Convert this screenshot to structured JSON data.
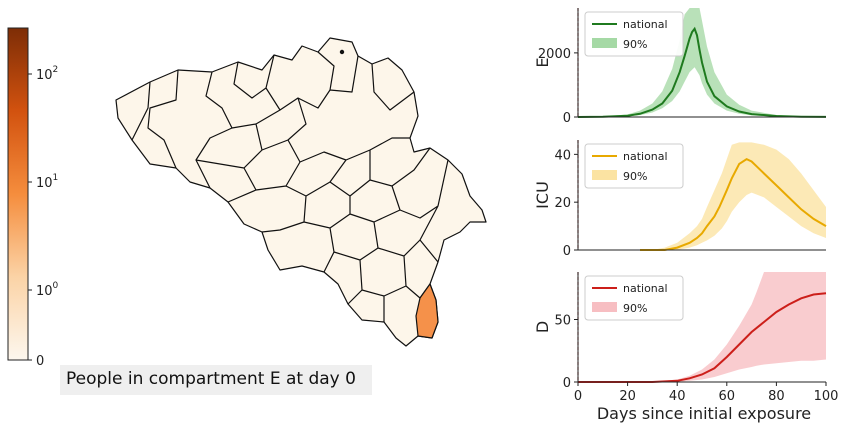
{
  "caption": "People in compartment E at day 0",
  "colorbar": {
    "tick_labels": [
      "0",
      "10",
      "10",
      "10"
    ],
    "tick_exponents": [
      "",
      "0",
      "1",
      "2"
    ],
    "scale": "symlog",
    "colors": [
      "#fdf7ee",
      "#fbd3a6",
      "#f58d3d",
      "#d2520f",
      "#7d2d06"
    ]
  },
  "map": {
    "base_fill": "#fdf6ea",
    "highlight_fill": "#f5914a",
    "border_color": "#111111"
  },
  "chart_data": [
    {
      "type": "area",
      "ylabel": "E",
      "xlim": [
        0,
        100
      ],
      "ylim": [
        0,
        3400
      ],
      "yticks": [
        0,
        2000
      ],
      "ytick_labels": [
        "0",
        "2000"
      ],
      "color": "#1f7a1f",
      "band_color": "#7fc97f",
      "legend": [
        "national",
        "90%"
      ],
      "series": [
        {
          "name": "national",
          "x": [
            0,
            10,
            20,
            25,
            30,
            34,
            38,
            41,
            43,
            45,
            46,
            47,
            48,
            49,
            50,
            52,
            55,
            60,
            65,
            70,
            80,
            90,
            100
          ],
          "y": [
            0,
            5,
            40,
            100,
            230,
            420,
            820,
            1400,
            1900,
            2450,
            2650,
            2750,
            2550,
            2100,
            1700,
            1100,
            650,
            330,
            170,
            90,
            30,
            10,
            3
          ]
        },
        {
          "name": "90%",
          "x": [
            0,
            10,
            20,
            25,
            30,
            34,
            38,
            41,
            43,
            45,
            47,
            49,
            50,
            52,
            55,
            60,
            65,
            70,
            80,
            90,
            100
          ],
          "y_low": [
            0,
            2,
            20,
            60,
            140,
            270,
            500,
            800,
            1100,
            1400,
            1550,
            1300,
            1050,
            700,
            420,
            200,
            100,
            50,
            15,
            5,
            1
          ],
          "y_high": [
            0,
            12,
            80,
            200,
            420,
            800,
            1500,
            2400,
            3200,
            3400,
            3400,
            3400,
            3000,
            2200,
            1400,
            700,
            380,
            200,
            60,
            20,
            6
          ]
        }
      ]
    },
    {
      "type": "area",
      "ylabel": "ICU",
      "xlim": [
        0,
        100
      ],
      "ylim": [
        0,
        46
      ],
      "yticks": [
        0,
        20,
        40
      ],
      "ytick_labels": [
        "0",
        "20",
        "40"
      ],
      "color": "#e8a900",
      "band_color": "#f9d77a",
      "legend": [
        "national",
        "90%"
      ],
      "series": [
        {
          "name": "national",
          "x": [
            25,
            30,
            35,
            40,
            45,
            48,
            50,
            52,
            55,
            57,
            60,
            62,
            65,
            68,
            70,
            72,
            75,
            80,
            85,
            90,
            95,
            100
          ],
          "y": [
            0,
            0,
            0,
            1,
            3,
            5,
            7,
            10,
            14,
            18,
            25,
            30,
            36,
            38,
            37,
            35,
            32,
            27,
            22,
            17,
            13,
            10
          ]
        },
        {
          "name": "90%",
          "x": [
            25,
            30,
            35,
            40,
            45,
            48,
            50,
            52,
            55,
            58,
            60,
            62,
            65,
            68,
            70,
            75,
            80,
            85,
            90,
            95,
            100
          ],
          "y_low": [
            0,
            0,
            0,
            0,
            1,
            2,
            3,
            4,
            6,
            9,
            12,
            16,
            20,
            23,
            24,
            22,
            18,
            14,
            10,
            7,
            5
          ],
          "y_high": [
            0,
            0,
            1,
            3,
            7,
            10,
            13,
            18,
            25,
            32,
            38,
            44,
            45,
            45,
            45,
            44,
            42,
            38,
            32,
            25,
            18
          ]
        }
      ]
    },
    {
      "type": "area",
      "ylabel": "D",
      "xlim": [
        0,
        100
      ],
      "ylim": [
        0,
        88
      ],
      "yticks": [
        0,
        50
      ],
      "ytick_labels": [
        "0",
        "50"
      ],
      "xticks": [
        0,
        20,
        40,
        60,
        80,
        100
      ],
      "xtick_labels": [
        "0",
        "20",
        "40",
        "60",
        "80",
        "100"
      ],
      "xlabel": "Days since initial exposure",
      "color": "#cc1f1a",
      "band_color": "#f4a3a8",
      "legend": [
        "national",
        "90%"
      ],
      "series": [
        {
          "name": "national",
          "x": [
            0,
            30,
            40,
            45,
            50,
            55,
            60,
            65,
            70,
            75,
            80,
            85,
            90,
            95,
            100
          ],
          "y": [
            0,
            0,
            1,
            3,
            6,
            11,
            20,
            30,
            40,
            48,
            56,
            62,
            67,
            70,
            71
          ]
        },
        {
          "name": "90%",
          "x": [
            0,
            30,
            40,
            45,
            50,
            55,
            60,
            65,
            70,
            72,
            75,
            80,
            85,
            90,
            95,
            100
          ],
          "y_low": [
            0,
            0,
            0,
            1,
            2,
            4,
            7,
            10,
            12,
            13,
            14,
            15,
            16,
            17,
            17,
            18
          ],
          "y_high": [
            0,
            0,
            2,
            5,
            10,
            18,
            30,
            45,
            62,
            72,
            88,
            88,
            88,
            88,
            88,
            88
          ]
        }
      ]
    }
  ]
}
